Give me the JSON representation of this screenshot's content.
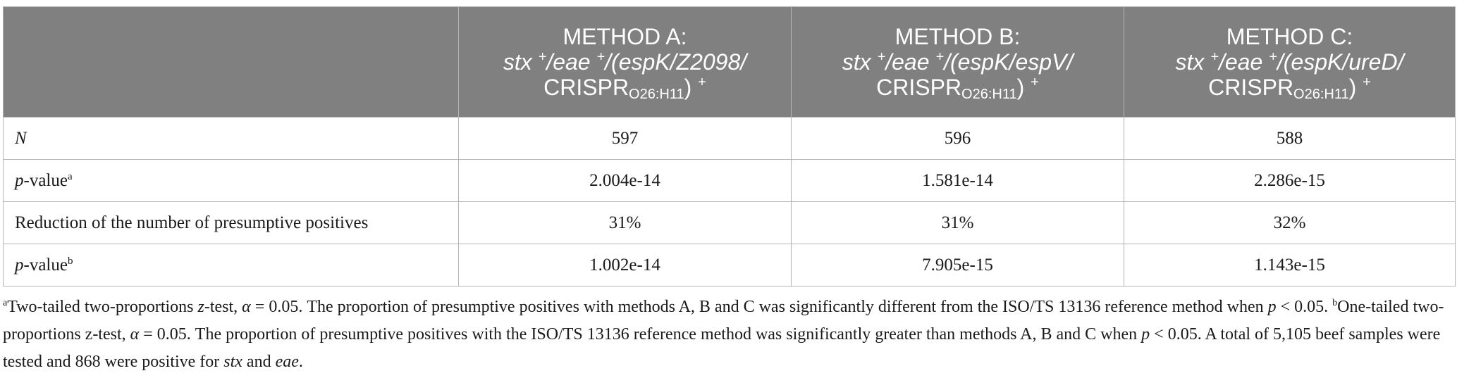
{
  "table": {
    "headers": [
      {
        "line1": "",
        "genes": "",
        "end": ""
      },
      {
        "line1": "METHOD A:",
        "genes": "stx +/eae +/(espK/Z2098/",
        "crispr": "CRISPR",
        "sub": "O26:H11",
        "end": ") +"
      },
      {
        "line1": "METHOD B:",
        "genes": "stx +/eae +/(espK/espV/",
        "crispr": "CRISPR",
        "sub": "O26:H11",
        "end": ") +"
      },
      {
        "line1": "METHOD C:",
        "genes": "stx +/eae +/(espK/ureD/",
        "crispr": "CRISPR",
        "sub": "O26:H11",
        "end": ") +"
      }
    ],
    "rows": [
      {
        "label": "N",
        "label_suffix": "",
        "values": [
          "597",
          "596",
          "588"
        ]
      },
      {
        "label": "p",
        "label_suffix": "-value",
        "sup": "a",
        "values": [
          "2.004e-14",
          "1.581e-14",
          "2.286e-15"
        ]
      },
      {
        "label": "Reduction of the number of presumptive positives",
        "values": [
          "31%",
          "31%",
          "32%"
        ]
      },
      {
        "label": "p",
        "label_suffix": "-value",
        "sup": "b",
        "values": [
          "1.002e-14",
          "7.905e-15",
          "1.143e-15"
        ]
      }
    ]
  },
  "footnote": {
    "sup_a": "a",
    "part1": "Two-tailed two-proportions ",
    "z": "z",
    "part2": "-test, ",
    "alpha": "α",
    "part3": " = 0.05. The proportion of presumptive positives with methods A, B and C was significantly different from the ISO/TS 13136 reference method when ",
    "p1": "p",
    "part4": " < 0.05. ",
    "sup_b": "b",
    "part5": "One-tailed two-proportions z-test, ",
    "alpha2": "α",
    "part6": " = 0.05. The proportion of presumptive positives with the ISO/TS 13136 reference method was significantly greater than methods A, B and C when ",
    "p2": "p",
    "part7": " < 0.05. A total of 5,105 beef samples were tested and 868 were positive for ",
    "stx": "stx",
    "part8": " and ",
    "eae": "eae",
    "part9": "."
  }
}
